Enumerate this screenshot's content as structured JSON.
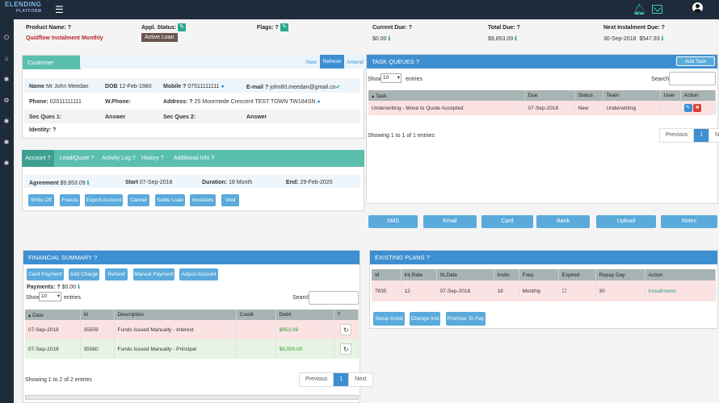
{
  "brand": {
    "logo_top": "ELENDING",
    "logo_sub": "PLATFORM"
  },
  "header": {
    "product_label": "Product Name: ?",
    "product_value": "Quidflow Instalment Monthly",
    "appl_label": "Appl. Status: ?",
    "appl_value": "Active Loan",
    "flags_label": "Flags: ?",
    "current_due_label": "Current Due: ?",
    "current_due_value": "$0.00",
    "total_due_label": "Total Due: ?",
    "total_due_value": "$9,853.09",
    "next_due_label": "Next Instalment Due: ?",
    "next_due_date": "30-Sep-2018",
    "next_due_amount": "$547.93"
  },
  "customer": {
    "title": "Customer Summary ?",
    "actions": [
      "New",
      "Refresh",
      "Amend"
    ],
    "name_label": "Name",
    "name_value": "Mr John Meedan",
    "dob_label": "DOB",
    "dob_value": "12-Feb-1980",
    "mobile_label": "Mobile ?",
    "mobile_value": "07511111111",
    "email_label": "E-mail ?",
    "email_value": "john80.meedan@gmail.co",
    "phone_label": "Phone:",
    "phone_value": "02011111111",
    "wphone_label": "W.Phone:",
    "address_label": "Address: ?",
    "address_value": "25 Moormede Crescent TEST TOWN TW184SN",
    "secq1_label": "Sec Ques 1:",
    "secq1_answer": "Answer",
    "secq2_label": "Sec Ques 2:",
    "secq2_answer": "Answer",
    "identity_label": "Identity: ?"
  },
  "account": {
    "tabs": [
      "Account ?",
      "Lead/Quote ?",
      "Activity Log ?",
      "History ?",
      "Additional Info ?"
    ],
    "agreement_label": "Agreement",
    "agreement_value": "$9,853.09",
    "start_label": "Start",
    "start_value": "07-Sep-2018",
    "duration_label": "Duration:",
    "duration_value": "18 Month",
    "end_label": "End:",
    "end_value": "29-Feb-2020",
    "buttons": [
      "Write Off",
      "Freeze",
      "Export Account",
      "Cancel",
      "Settle Loan",
      "Investors",
      "Void"
    ]
  },
  "tasks": {
    "title": "TASK QUEUES ?",
    "add_button": "Add Task Queue",
    "show_label": "Show",
    "entries_value": "10",
    "entries_label": "entries",
    "search_label": "Search:",
    "columns": [
      "Task",
      "Due",
      "Status",
      "Team",
      "User",
      "Action"
    ],
    "rows": [
      {
        "task": "Underwriting - Move to Quote Accepted",
        "due": "07-Sep-2018",
        "status": "New",
        "team": "Underwriting",
        "user": ""
      }
    ],
    "info": "Showing 1 to 1 of 1 entries",
    "pager": [
      "Previous",
      "1",
      "Next"
    ]
  },
  "comm_buttons": [
    "SMS",
    "Email",
    "Card",
    "Bank",
    "Upload",
    "Notes"
  ],
  "financial": {
    "title": "FINANCIAL SUMMARY ?",
    "buttons": [
      "Card Payment",
      "Add Charge",
      "Refund",
      "Manual Payment",
      "Adjust Account"
    ],
    "payments_label": "Payments: ?",
    "payments_value": "$0.00",
    "show_label": "Show",
    "entries_value": "10",
    "entries_label": "entries",
    "search_label": "Search:",
    "columns": [
      "Date",
      "Id",
      "Description",
      "Credit",
      "Debit",
      "?"
    ],
    "rows": [
      {
        "date": "07-Sep-2018",
        "id": "35559",
        "description": "Funds Issued Manually - Interest",
        "credit": "",
        "debit": "$853.09"
      },
      {
        "date": "07-Sep-2018",
        "id": "35560",
        "description": "Funds Issued Manually - Principal",
        "credit": "",
        "debit": "$9,000.00"
      }
    ],
    "info": "Showing 1 to 2 of 2 entries",
    "pager": [
      "Previous",
      "1",
      "Next"
    ]
  },
  "plans": {
    "title": "EXISTING PLANS ?",
    "columns": [
      "Id",
      "Int.Rate",
      "St.Date",
      "Instls",
      "Freq",
      "Expired",
      "Repay Day",
      "Action"
    ],
    "rows": [
      {
        "id": "7835",
        "rate": "12",
        "start": "07-Sep-2018",
        "instls": "18",
        "freq": "Monthly",
        "expired": "☐",
        "repay": "30",
        "action": "Installments"
      }
    ],
    "buttons": [
      "Setup Instal",
      "Change Inst",
      "Promise To Pay"
    ]
  },
  "icons": {
    "hamburger": "menu-icon",
    "bell": "bell-icon",
    "mail": "mail-icon",
    "user": "user-icon",
    "pencil": "pencil-icon",
    "info": "info-icon",
    "refresh": "refresh-icon"
  },
  "colors": {
    "teal": "#5bbfae",
    "blue": "#3d8fd1",
    "button": "#5aaadb",
    "dark": "#1e2b3a",
    "red": "#b8262b"
  }
}
